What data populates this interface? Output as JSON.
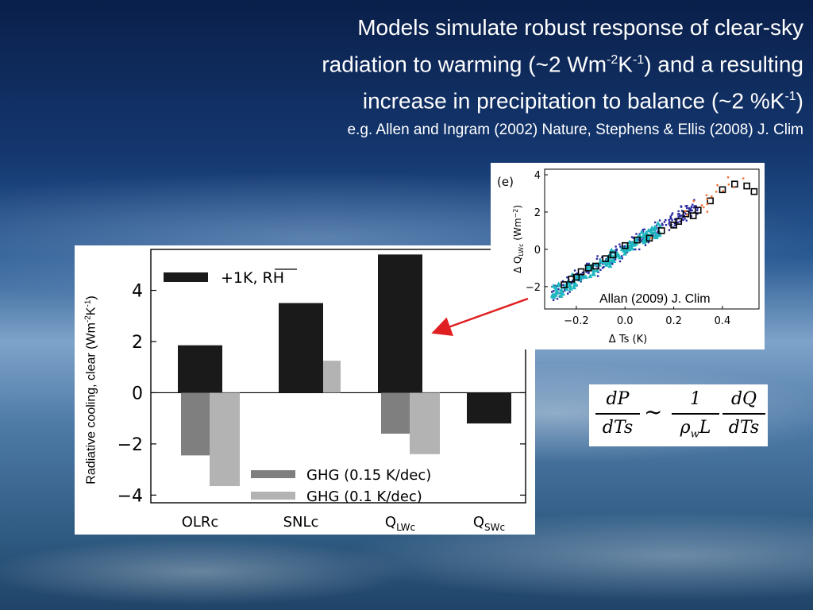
{
  "slide": {
    "title_lines": [
      {
        "a": "Models simulate robust response of clear-sky",
        "sup1": "",
        "b": "",
        "sup2": "",
        "c": ""
      },
      {
        "a": "radiation to warming (~2 Wm",
        "sup1": "-2",
        "b": "K",
        "sup2": "-1",
        "c": ") and a resulting"
      },
      {
        "a": "increase in precipitation to balance (~2 %K",
        "sup1": "-1",
        "b": ")",
        "sup2": "",
        "c": ""
      }
    ],
    "subtitle": "e.g. Allen and Ingram (2002) Nature, Stephens & Ellis (2008) J. Clim",
    "ylabel_main": {
      "a": "Radiative cooling, clear (Wm",
      "sup1": "-2",
      "b": "K",
      "sup2": "-1",
      "c": ")"
    },
    "attribution": "Allan (2009) J. Clim",
    "equation": {
      "lhs_num": "dP",
      "lhs_den": "dTs",
      "relation": "~",
      "rhs1_num": "1",
      "rhs1_den_rho": "ρ",
      "rhs1_den_sub": "w",
      "rhs1_den_L": "L",
      "rhs2_num": "dQ",
      "rhs2_den": "dTs"
    }
  },
  "colors": {
    "arrow": "#e02020",
    "black_bar": "#1a1a1a",
    "ghg015": "#7f7f7f",
    "ghg01": "#b3b3b3"
  },
  "chart_data": [
    {
      "type": "bar",
      "categories": [
        "OLRc",
        "SNLc",
        "Q_LWc",
        "Q_SWc"
      ],
      "category_labels": [
        {
          "main": "OLRc",
          "sub": ""
        },
        {
          "main": "SNLc",
          "sub": ""
        },
        {
          "main": "Q",
          "sub": "LWc"
        },
        {
          "main": "Q",
          "sub": "SWc"
        }
      ],
      "series": [
        {
          "name": "+1K, RH",
          "values": [
            1.85,
            3.5,
            5.4,
            -1.2
          ]
        },
        {
          "name": "GHG (0.15 K/dec)",
          "values": [
            -2.45,
            0.8,
            -1.6,
            null
          ]
        },
        {
          "name": "GHG (0.1 K/dec)",
          "values": [
            -3.65,
            1.25,
            -2.4,
            null
          ]
        }
      ],
      "ylim": [
        -4.3,
        5.6
      ],
      "yticks": [
        -4,
        -2,
        0,
        2,
        4
      ],
      "ytick_labels": [
        "−4",
        "−2",
        "0",
        "2",
        "4"
      ],
      "grid": false,
      "legend_placement": "top-left and bottom-right"
    },
    {
      "type": "scatter",
      "panel_label": "(e)",
      "xlabel": "Δ Ts (K)",
      "ylabel": "Δ Q_LWc (Wm⁻²)",
      "ylabel_parts": {
        "a": "Δ Q",
        "sub": "LWc",
        "b": " (Wm",
        "sup": "−2",
        "c": ")"
      },
      "xlim": [
        -0.33,
        0.55
      ],
      "ylim": [
        -3.2,
        4.3
      ],
      "xticks": [
        -0.2,
        0.0,
        0.2,
        0.4
      ],
      "xtick_labels": [
        "−0.2",
        "0.0",
        "0.2",
        "0.4"
      ],
      "yticks": [
        -2,
        0,
        2,
        4
      ],
      "ytick_labels": [
        "−2",
        "0",
        "2",
        "4"
      ],
      "trend_slope": 8.0,
      "series": [
        {
          "name": "dense-blue",
          "color": "#2a2aa0",
          "marker": "dot",
          "x_range": [
            -0.3,
            0.3
          ],
          "spread": 0.55,
          "count": 260
        },
        {
          "name": "cyan",
          "color": "#20b8c0",
          "marker": "triangle",
          "x_range": [
            -0.3,
            0.15
          ],
          "spread": 0.45,
          "count": 140
        },
        {
          "name": "boxes",
          "color": "#000000",
          "marker": "square",
          "points": [
            [
              -0.25,
              -1.9
            ],
            [
              -0.22,
              -1.6
            ],
            [
              -0.2,
              -1.5
            ],
            [
              -0.18,
              -1.2
            ],
            [
              -0.15,
              -1.0
            ],
            [
              -0.12,
              -0.9
            ],
            [
              -0.08,
              -0.5
            ],
            [
              -0.05,
              -0.3
            ],
            [
              0.0,
              0.2
            ],
            [
              0.05,
              0.5
            ],
            [
              0.1,
              0.6
            ],
            [
              0.15,
              1.0
            ],
            [
              0.2,
              1.3
            ],
            [
              0.22,
              1.5
            ],
            [
              0.25,
              1.9
            ],
            [
              0.28,
              1.8
            ],
            [
              0.3,
              2.1
            ],
            [
              0.35,
              2.6
            ],
            [
              0.4,
              3.2
            ],
            [
              0.45,
              3.5
            ],
            [
              0.5,
              3.4
            ],
            [
              0.53,
              3.1
            ]
          ]
        },
        {
          "name": "orange",
          "color": "#f07030",
          "marker": "dot",
          "x_range": [
            0.1,
            0.5
          ],
          "spread": 0.8,
          "count": 18
        }
      ]
    }
  ]
}
